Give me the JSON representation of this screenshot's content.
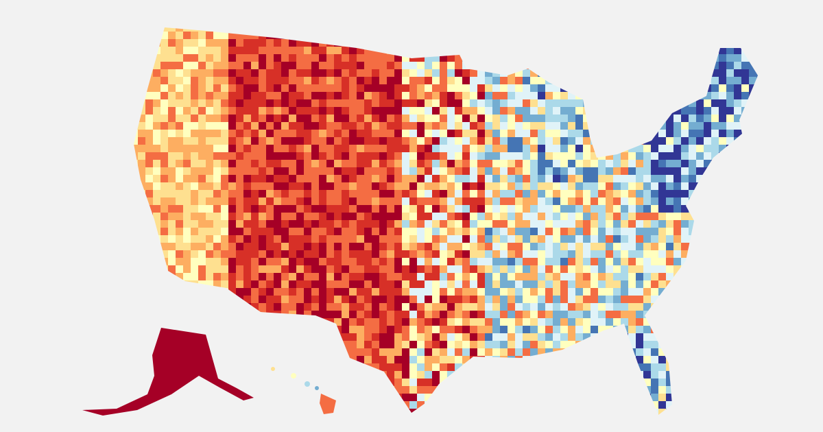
{
  "map": {
    "type": "choropleth",
    "units": "counties",
    "background": "#f2f2f2",
    "palette": [
      "#a50026",
      "#d73027",
      "#f46d43",
      "#fdae61",
      "#fee090",
      "#ffffbf",
      "#e0f3f8",
      "#abd9e9",
      "#74add1",
      "#4575b4",
      "#313695"
    ],
    "regions": [
      "contiguous-us",
      "alaska",
      "hawaii"
    ]
  }
}
